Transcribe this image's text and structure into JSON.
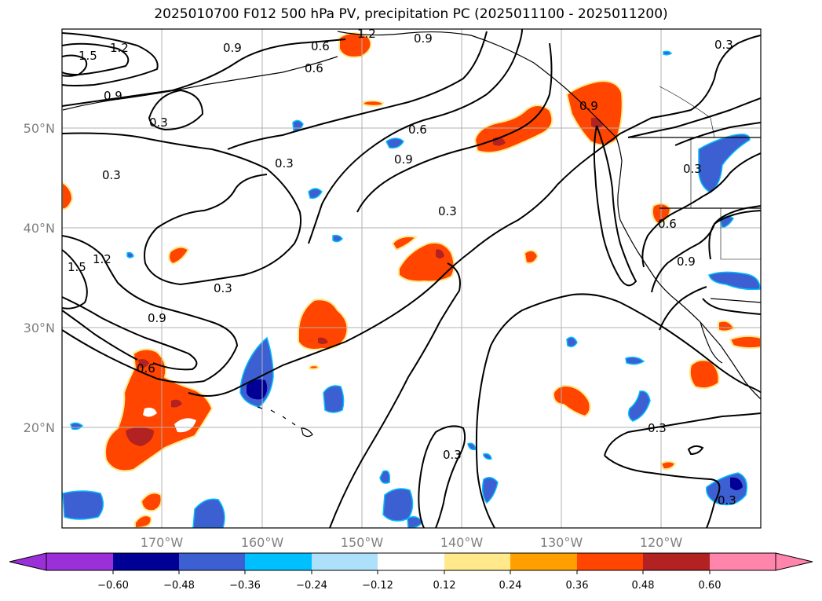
{
  "title": "2025010700 F012 500 hPa PV, precipitation PC (2025011100 - 2025011200)",
  "lon_labels": [
    "170°W",
    "160°W",
    "150°W",
    "140°W",
    "130°W",
    "120°W"
  ],
  "lat_labels": [
    "50°N",
    "40°N",
    "30°N",
    "20°N"
  ],
  "contour_labels": [
    "1.2",
    "1.5",
    "0.9",
    "0.3",
    "0.9",
    "0.6",
    "0.6",
    "0.9",
    "0.3",
    "0.3",
    "0.9",
    "0.3",
    "0.6",
    "0.3",
    "1.2",
    "1.5",
    "0.3",
    "0.9",
    "0.6",
    "0.9",
    "0.6",
    "0.3",
    "0.3",
    "0.3",
    "0.3",
    "1.2",
    "0.9"
  ],
  "colorbar": {
    "ticks": [
      "−0.60",
      "−0.48",
      "−0.36",
      "−0.24",
      "−0.12",
      "0.12",
      "0.24",
      "0.36",
      "0.48",
      "0.60"
    ],
    "colors": [
      "#9b30d9",
      "#000096",
      "#3c5fd2",
      "#00bfff",
      "#ade0fa",
      "#ffffff",
      "#ffe98a",
      "#ffa000",
      "#ff4500",
      "#b22222",
      "#ff85ad"
    ]
  },
  "colors": {
    "contour": "#000000",
    "grid": "#b0b0b0",
    "axis_label": "#7f7f7f"
  }
}
